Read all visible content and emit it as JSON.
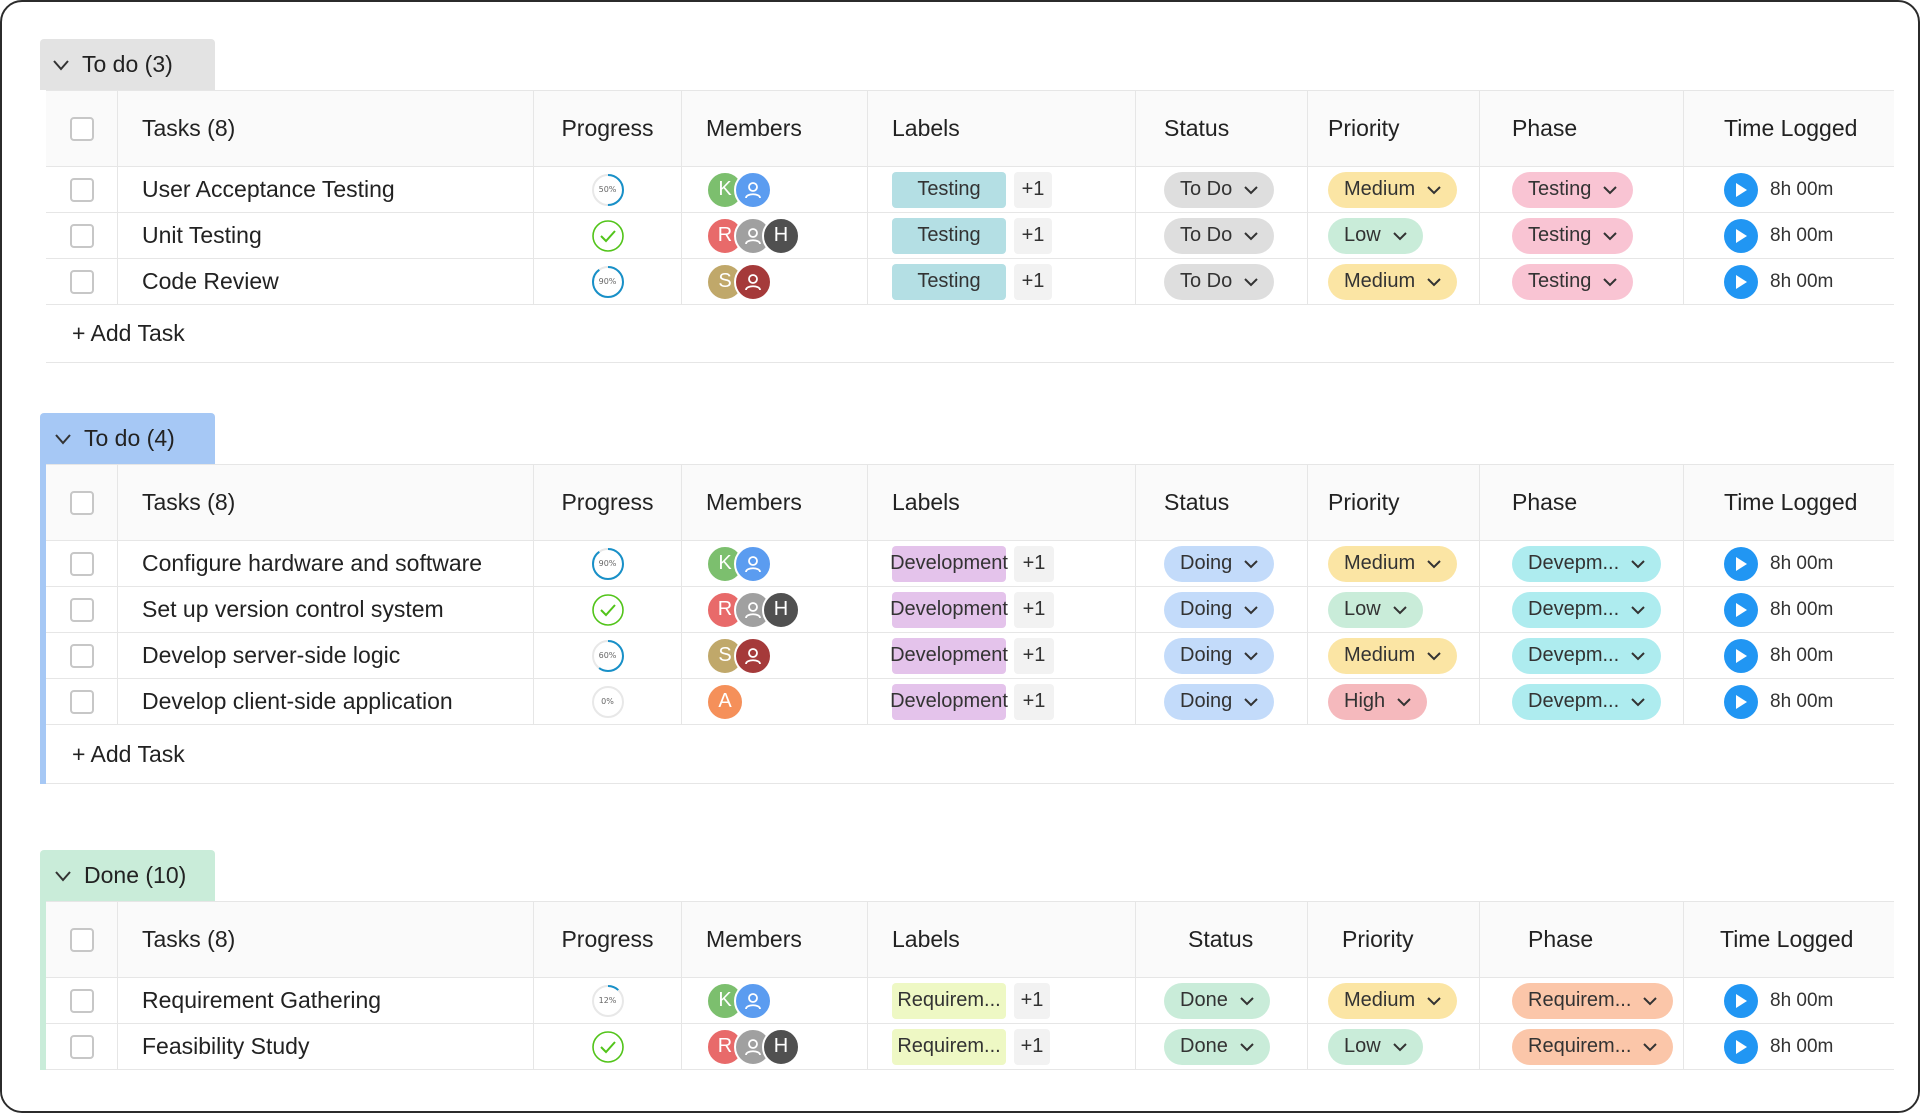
{
  "columns": {
    "tasks": "Tasks (8)",
    "progress": "Progress",
    "members": "Members",
    "labels": "Labels",
    "status": "Status",
    "priority": "Priority",
    "phase": "Phase",
    "time": "Time Logged"
  },
  "add_task_label": "+ Add Task",
  "colors": {
    "group_todo_gray": "#e0e0e0",
    "group_todo_blue": "#a6c8f5",
    "group_done": "#c9ecd9",
    "label_testing": "#b4dfe4",
    "label_development": "#e4c3eb",
    "label_requirement": "#eef8c4",
    "status_todo": "#dedede",
    "status_doing": "#c3dbfa",
    "status_done": "#c9ecd9",
    "priority_medium": "#fbe5a4",
    "priority_low": "#c9ecd9",
    "priority_high": "#f5b9bd",
    "phase_testing": "#f9c4d3",
    "phase_development": "#aeecef",
    "phase_requirement": "#fbc6a9",
    "play": "#2196f3"
  },
  "groups": [
    {
      "title": "To do (3)",
      "tasks": [
        {
          "name": "User Acceptance Testing",
          "progress": 50,
          "progress_text": "50%",
          "members": [
            "K",
            "user-icon"
          ],
          "label": "Testing",
          "label_more": "+1",
          "status": "To Do",
          "priority": "Medium",
          "phase": "Testing",
          "time": "8h 00m"
        },
        {
          "name": "Unit Testing",
          "progress": 100,
          "progress_text": "",
          "members": [
            "R",
            "user-icon",
            "H"
          ],
          "label": "Testing",
          "label_more": "+1",
          "status": "To Do",
          "priority": "Low",
          "phase": "Testing",
          "time": "8h 00m"
        },
        {
          "name": "Code Review",
          "progress": 90,
          "progress_text": "90%",
          "members": [
            "S",
            "user-icon"
          ],
          "label": "Testing",
          "label_more": "+1",
          "status": "To Do",
          "priority": "Medium",
          "phase": "Testing",
          "time": "8h 00m"
        }
      ]
    },
    {
      "title": "To do (4)",
      "tasks": [
        {
          "name": "Configure hardware and software",
          "progress": 90,
          "progress_text": "90%",
          "members": [
            "K",
            "user-icon"
          ],
          "label": "Development",
          "label_more": "+1",
          "status": "Doing",
          "priority": "Medium",
          "phase": "Devepm...",
          "time": "8h 00m"
        },
        {
          "name": "Set up version control system",
          "progress": 100,
          "progress_text": "",
          "members": [
            "R",
            "user-icon",
            "H"
          ],
          "label": "Development",
          "label_more": "+1",
          "status": "Doing",
          "priority": "Low",
          "phase": "Devepm...",
          "time": "8h 00m"
        },
        {
          "name": "Develop server-side logic",
          "progress": 60,
          "progress_text": "60%",
          "members": [
            "S",
            "user-icon"
          ],
          "label": "Development",
          "label_more": "+1",
          "status": "Doing",
          "priority": "Medium",
          "phase": "Devepm...",
          "time": "8h 00m"
        },
        {
          "name": "Develop client-side application",
          "progress": 0,
          "progress_text": "0%",
          "members": [
            "A"
          ],
          "label": "Development",
          "label_more": "+1",
          "status": "Doing",
          "priority": "High",
          "phase": "Devepm...",
          "time": "8h 00m"
        }
      ]
    },
    {
      "title": "Done (10)",
      "tasks": [
        {
          "name": "Requirement Gathering",
          "progress": 12,
          "progress_text": "12%",
          "members": [
            "K",
            "user-icon"
          ],
          "label": "Requirem...",
          "label_more": "+1",
          "status": "Done",
          "priority": "Medium",
          "phase": "Requirem...",
          "time": "8h 00m"
        },
        {
          "name": "Feasibility Study",
          "progress": 100,
          "progress_text": "",
          "members": [
            "R",
            "user-icon",
            "H"
          ],
          "label": "Requirem...",
          "label_more": "+1",
          "status": "Done",
          "priority": "Low",
          "phase": "Requirem...",
          "time": "8h 00m"
        }
      ]
    }
  ]
}
